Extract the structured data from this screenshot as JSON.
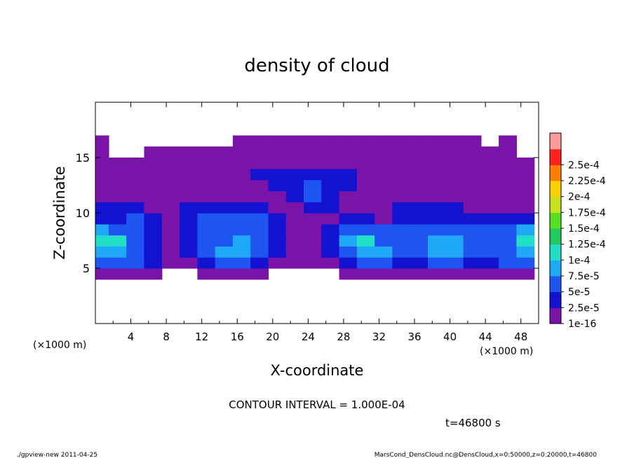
{
  "chart_data": {
    "type": "heatmap",
    "title": "density of cloud",
    "xlabel": "X-coordinate",
    "ylabel": "Z-coordinate",
    "x_unit_left": "(×1000 m)",
    "x_unit_right": "(×1000 m)",
    "xlim": [
      0,
      50
    ],
    "ylim": [
      0,
      20
    ],
    "x_ticks": [
      4,
      8,
      12,
      16,
      20,
      24,
      28,
      32,
      36,
      40,
      44,
      48
    ],
    "y_ticks": [
      5,
      10,
      15
    ],
    "grid": false,
    "colorbar": {
      "position": "right",
      "levels": [
        "1e-16",
        "2.5e-5",
        "5e-5",
        "7.5e-5",
        "1e-4",
        "1.25e-4",
        "1.5e-4",
        "1.75e-4",
        "2e-4",
        "2.25e-4",
        "2.5e-4"
      ],
      "colors": [
        "#7a14a8",
        "#1212d0",
        "#1e55f0",
        "#1ea8f5",
        "#22e0c8",
        "#22c860",
        "#55e020",
        "#c8e020",
        "#ffd000",
        "#ff8000",
        "#ff2020",
        "#ff9a9a"
      ]
    },
    "contour_interval": "CONTOUR INTERVAL = 1.000E-04",
    "time_label": "t=46800 s",
    "description_grid": {
      "x": [
        0.5,
        2.5,
        4.5,
        6.5,
        8.5,
        10.5,
        12.5,
        14.5,
        16.5,
        18.5,
        20.5,
        22.5,
        24.5,
        26.5,
        28.5,
        30.5,
        32.5,
        34.5,
        36.5,
        38.5,
        40.5,
        42.5,
        44.5,
        46.5,
        48.5
      ],
      "z": [
        4.5,
        5.5,
        6.5,
        7.5,
        8.5,
        9.5,
        10.5,
        11.5,
        12.5,
        13.5,
        14.5,
        15.5,
        16.5
      ],
      "values_level": [
        [
          1,
          1,
          1,
          1,
          0,
          0,
          1,
          1,
          1,
          1,
          0,
          0,
          0,
          0,
          1,
          1,
          1,
          1,
          1,
          1,
          1,
          1,
          1,
          1,
          1
        ],
        [
          3,
          3,
          3,
          2,
          1,
          1,
          2,
          3,
          3,
          2,
          1,
          1,
          1,
          1,
          2,
          3,
          3,
          2,
          2,
          3,
          3,
          2,
          2,
          3,
          3
        ],
        [
          4,
          4,
          3,
          2,
          1,
          2,
          3,
          4,
          4,
          3,
          2,
          1,
          1,
          2,
          3,
          4,
          4,
          3,
          3,
          4,
          4,
          3,
          3,
          3,
          4
        ],
        [
          5,
          5,
          3,
          2,
          1,
          2,
          3,
          3,
          4,
          3,
          2,
          1,
          1,
          2,
          4,
          5,
          3,
          3,
          3,
          4,
          4,
          3,
          3,
          3,
          5
        ],
        [
          4,
          3,
          3,
          2,
          1,
          2,
          3,
          3,
          3,
          3,
          2,
          1,
          1,
          2,
          3,
          3,
          3,
          3,
          3,
          3,
          3,
          3,
          3,
          3,
          4
        ],
        [
          2,
          2,
          3,
          2,
          1,
          2,
          3,
          3,
          3,
          3,
          2,
          1,
          1,
          1,
          2,
          2,
          1,
          2,
          2,
          2,
          2,
          2,
          2,
          2,
          2
        ],
        [
          2,
          2,
          2,
          1,
          1,
          2,
          2,
          2,
          2,
          2,
          1,
          1,
          2,
          2,
          1,
          1,
          1,
          2,
          2,
          2,
          2,
          1,
          1,
          1,
          1
        ],
        [
          1,
          1,
          1,
          1,
          1,
          1,
          1,
          1,
          1,
          1,
          1,
          2,
          3,
          2,
          1,
          1,
          1,
          1,
          1,
          1,
          1,
          1,
          1,
          1,
          1
        ],
        [
          1,
          1,
          1,
          1,
          1,
          1,
          1,
          1,
          1,
          1,
          2,
          2,
          3,
          2,
          2,
          1,
          1,
          1,
          1,
          1,
          1,
          1,
          1,
          1,
          1
        ],
        [
          1,
          1,
          1,
          1,
          1,
          1,
          1,
          1,
          1,
          2,
          2,
          2,
          2,
          2,
          2,
          1,
          1,
          1,
          1,
          1,
          1,
          1,
          1,
          1,
          1
        ],
        [
          1,
          1,
          1,
          1,
          1,
          1,
          1,
          1,
          1,
          1,
          1,
          1,
          1,
          1,
          1,
          1,
          1,
          1,
          1,
          1,
          1,
          1,
          1,
          1,
          1
        ],
        [
          1,
          0,
          0,
          1,
          1,
          1,
          1,
          1,
          1,
          1,
          1,
          1,
          1,
          1,
          1,
          1,
          1,
          1,
          1,
          1,
          1,
          1,
          1,
          1,
          0
        ],
        [
          1,
          0,
          0,
          0,
          0,
          0,
          0,
          0,
          1,
          1,
          1,
          1,
          1,
          1,
          1,
          1,
          1,
          1,
          1,
          1,
          1,
          1,
          0,
          1,
          0
        ]
      ]
    }
  },
  "footer": {
    "left": "./gpview-new  2011-04-25",
    "right": "MarsCond_DensCloud.nc@DensCloud,x=0:50000,z=0:20000,t=46800"
  }
}
